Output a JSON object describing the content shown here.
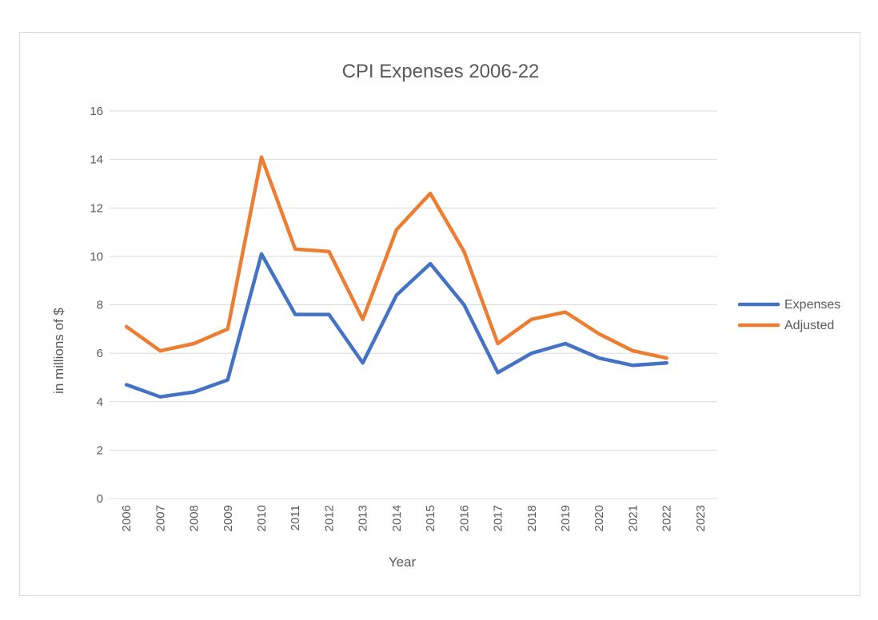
{
  "chart_data": {
    "type": "line",
    "title": "CPI Expenses 2006-22",
    "xlabel": "Year",
    "ylabel": "in millions of $",
    "categories": [
      "2006",
      "2007",
      "2008",
      "2009",
      "2010",
      "2011",
      "2012",
      "2013",
      "2014",
      "2015",
      "2016",
      "2017",
      "2018",
      "2019",
      "2020",
      "2021",
      "2022",
      "2023"
    ],
    "ylim": [
      0,
      16
    ],
    "yticks": [
      0,
      2,
      4,
      6,
      8,
      10,
      12,
      14,
      16
    ],
    "grid": true,
    "legend_position": "right",
    "series": [
      {
        "name": "Expenses",
        "color": "#4472c4",
        "values": [
          4.7,
          4.2,
          4.4,
          4.9,
          10.1,
          7.6,
          7.6,
          5.6,
          8.4,
          9.7,
          8.0,
          5.2,
          6.0,
          6.4,
          5.8,
          5.5,
          5.6,
          null
        ]
      },
      {
        "name": "Adjusted",
        "color": "#ed7d31",
        "values": [
          7.1,
          6.1,
          6.4,
          7.0,
          14.1,
          10.3,
          10.2,
          7.4,
          11.1,
          12.6,
          10.2,
          6.4,
          7.4,
          7.7,
          6.8,
          6.1,
          5.8,
          null
        ]
      }
    ]
  }
}
